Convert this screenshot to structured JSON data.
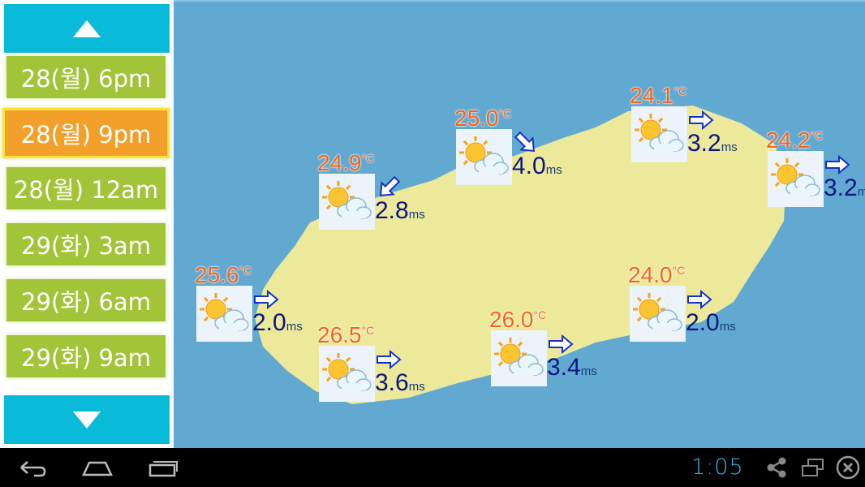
{
  "sidebar": {
    "up_button": "up-arrow-icon",
    "down_button": "down-arrow-icon",
    "items": [
      {
        "label": "28(월) 6pm",
        "selected": false
      },
      {
        "label": "28(월) 9pm",
        "selected": true
      },
      {
        "label": "28(월) 12am",
        "selected": false
      },
      {
        "label": "29(화) 3am",
        "selected": false
      },
      {
        "label": "29(화) 6am",
        "selected": false
      },
      {
        "label": "29(화) 9am",
        "selected": false
      }
    ]
  },
  "map": {
    "unit_temp": "°C",
    "unit_wind": "ms",
    "weather_icon": "partly-cloudy-icon",
    "stations": [
      {
        "temp": "24.9",
        "wind": "2.8",
        "wind_arrow_deg": 135
      },
      {
        "temp": "25.0",
        "wind": "4.0",
        "wind_arrow_deg": 45
      },
      {
        "temp": "24.1",
        "wind": "3.2",
        "wind_arrow_deg": 0
      },
      {
        "temp": "24.2",
        "wind": "3.2",
        "wind_arrow_deg": 0
      },
      {
        "temp": "25.6",
        "wind": "2.0",
        "wind_arrow_deg": 0
      },
      {
        "temp": "26.5",
        "wind": "3.6",
        "wind_arrow_deg": 0
      },
      {
        "temp": "26.0",
        "wind": "3.4",
        "wind_arrow_deg": 0
      },
      {
        "temp": "24.0",
        "wind": "2.0",
        "wind_arrow_deg": 0
      }
    ],
    "colors": {
      "sea": "#62a9d1",
      "land": "#ece99b",
      "temp": "#f5631a",
      "wind": "#0b1680"
    }
  },
  "navbar": {
    "time": "1:05"
  }
}
